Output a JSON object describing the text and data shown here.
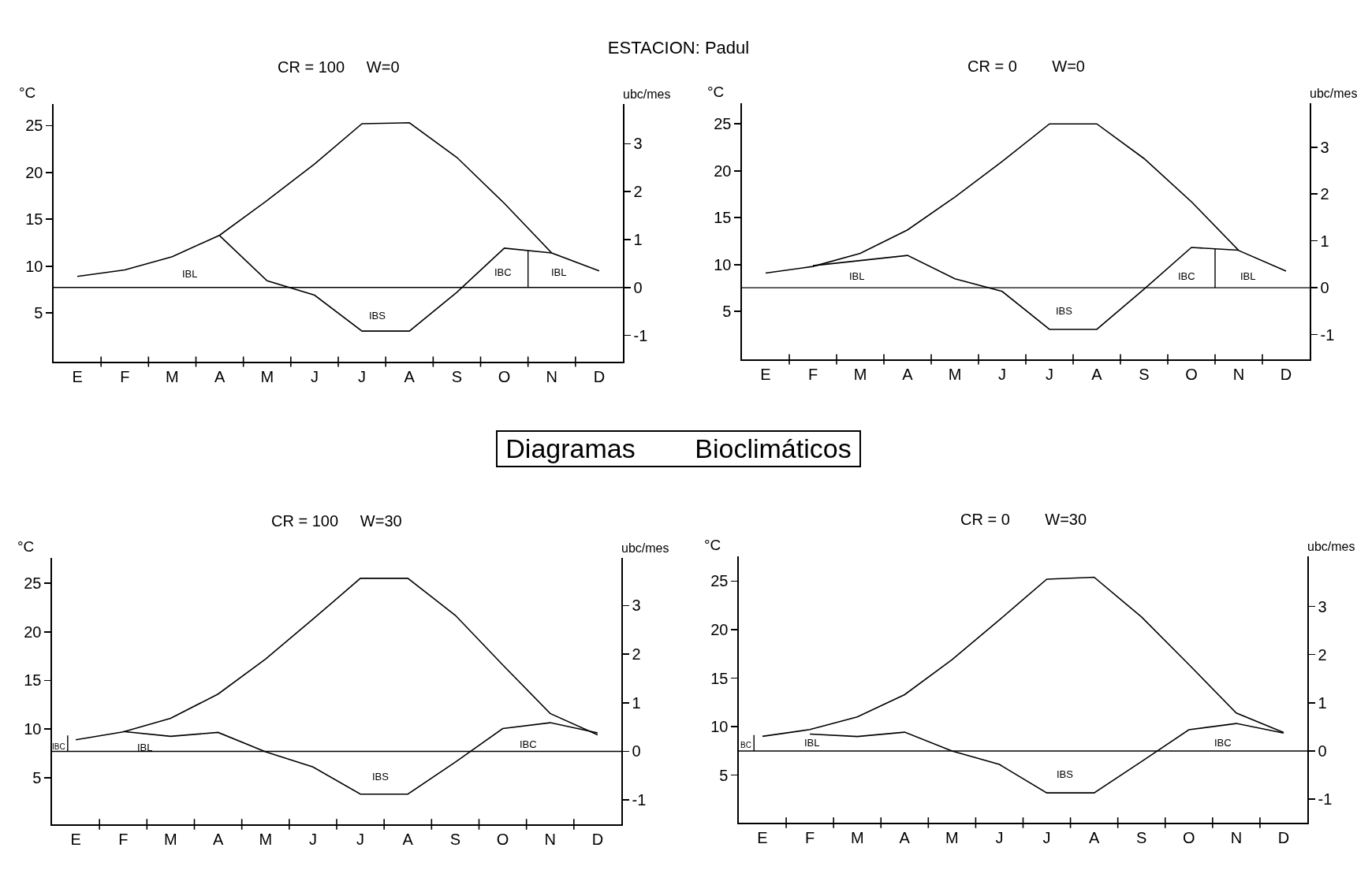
{
  "chart_data": [
    {
      "type": "line",
      "title": "CR = 100     W=0",
      "ylabel": "°C",
      "y2label": "ubc/mes",
      "categories": [
        "E",
        "F",
        "M",
        "A",
        "M",
        "J",
        "J",
        "A",
        "S",
        "O",
        "N",
        "D"
      ],
      "ylim": [
        -0.2,
        27.3
      ],
      "yticks": [
        5,
        10,
        15,
        20,
        25
      ],
      "y2lim": [
        -1.55,
        3.83
      ],
      "y2ticks": [
        -1,
        0,
        1,
        2,
        3
      ],
      "series": [
        {
          "color": "#000000",
          "values": [
            8.9,
            9.6,
            11.0,
            13.3,
            17.0,
            20.9,
            25.2,
            25.3,
            21.6,
            16.7,
            11.4,
            9.5
          ]
        },
        {
          "color": "#000000",
          "axis": "y2",
          "values": [
            null,
            null,
            null,
            1.08,
            0.14,
            -0.16,
            -0.91,
            -0.91,
            -0.1,
            0.82,
            0.72,
            null
          ]
        }
      ],
      "ref_lines": [
        {
          "axis": "y2",
          "value": 0,
          "color": "#000000"
        }
      ],
      "annotations": [
        "ESTACION: Padul",
        "IBL",
        "IBC",
        "IBL",
        "IBS"
      ]
    },
    {
      "type": "line",
      "title": "CR = 0        W=0",
      "ylabel": "°C",
      "y2label": "ubc/mes",
      "categories": [
        "E",
        "F",
        "M",
        "A",
        "M",
        "J",
        "J",
        "A",
        "S",
        "O",
        "N",
        "D"
      ],
      "ylim": [
        -0.1,
        27.2
      ],
      "yticks": [
        5,
        10,
        15,
        20,
        25
      ],
      "y2lim": [
        -1.53,
        3.94
      ],
      "y2ticks": [
        -1,
        0,
        1,
        2,
        3
      ],
      "series": [
        {
          "color": "#000000",
          "values": [
            9.1,
            9.8,
            11.2,
            13.7,
            17.2,
            21.0,
            25.0,
            25.0,
            21.3,
            16.7,
            11.5,
            9.3
          ]
        },
        {
          "color": "#000000",
          "axis": "y2",
          "values": [
            null,
            0.47,
            0.58,
            0.69,
            0.19,
            -0.08,
            -0.89,
            -0.89,
            -0.03,
            0.86,
            0.8,
            null
          ]
        }
      ],
      "ref_lines": [
        {
          "axis": "y2",
          "value": 0,
          "color": "#000000"
        }
      ],
      "annotations": [
        "IBL",
        "IBC",
        "IBL",
        "IBS"
      ]
    },
    {
      "type": "line",
      "title": "CR = 100     W=30",
      "ylabel": "°C",
      "y2label": "ubc/mes",
      "categories": [
        "E",
        "F",
        "M",
        "A",
        "M",
        "J",
        "J",
        "A",
        "S",
        "O",
        "N",
        "D"
      ],
      "ylim": [
        0.2,
        27.6
      ],
      "yticks": [
        5,
        10,
        15,
        20,
        25
      ],
      "y2lim": [
        -1.5,
        3.98
      ],
      "y2ticks": [
        -1,
        0,
        1,
        2,
        3
      ],
      "series": [
        {
          "color": "#000000",
          "values": [
            8.9,
            9.7,
            11.1,
            13.6,
            17.2,
            21.3,
            25.5,
            25.5,
            21.7,
            16.6,
            11.6,
            9.4
          ]
        },
        {
          "color": "#000000",
          "axis": "y2",
          "values": [
            null,
            0.41,
            0.31,
            0.39,
            -0.01,
            -0.32,
            -0.88,
            -0.88,
            -0.22,
            0.47,
            0.59,
            0.38
          ]
        }
      ],
      "ref_lines": [
        {
          "axis": "y2",
          "value": 0,
          "color": "#000000"
        }
      ],
      "annotations": [
        "Diagramas        Bioclimáticos",
        "IBC",
        "IBL",
        "IBC",
        "IBS"
      ]
    },
    {
      "type": "line",
      "title": "CR = 0        W=30",
      "ylabel": "°C",
      "y2label": "ubc/mes",
      "categories": [
        "E",
        "F",
        "M",
        "A",
        "M",
        "J",
        "J",
        "A",
        "S",
        "O",
        "N",
        "D"
      ],
      "ylim": [
        0.1,
        27.55
      ],
      "yticks": [
        5,
        10,
        15,
        20,
        25
      ],
      "y2lim": [
        -1.49,
        4.04
      ],
      "y2ticks": [
        -1,
        0,
        1,
        2,
        3
      ],
      "series": [
        {
          "color": "#000000",
          "values": [
            9.0,
            9.7,
            11.0,
            13.3,
            16.9,
            21.0,
            25.2,
            25.4,
            21.3,
            16.4,
            11.4,
            9.4
          ]
        },
        {
          "color": "#000000",
          "axis": "y2",
          "values": [
            null,
            0.35,
            0.3,
            0.39,
            0,
            -0.28,
            -0.87,
            -0.87,
            -0.22,
            0.44,
            0.57,
            0.37
          ]
        }
      ],
      "ref_lines": [
        {
          "axis": "y2",
          "value": 0,
          "color": "#000000"
        }
      ],
      "annotations": [
        "BC",
        "IBL",
        "IBC",
        "IBS"
      ]
    }
  ]
}
